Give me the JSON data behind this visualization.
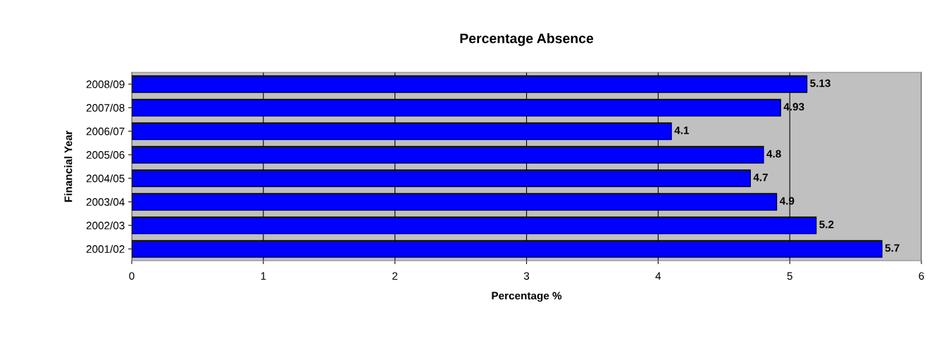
{
  "chart_data": {
    "type": "bar",
    "orientation": "horizontal",
    "title": "Percentage Absence",
    "xlabel": "Percentage %",
    "ylabel": "Financial Year",
    "categories": [
      "2008/09",
      "2007/08",
      "2006/07",
      "2005/06",
      "2004/05",
      "2003/04",
      "2002/03",
      "2001/02"
    ],
    "values": [
      5.13,
      4.93,
      4.1,
      4.8,
      4.7,
      4.9,
      5.2,
      5.7
    ],
    "color": "#0000ff",
    "xlim": [
      0,
      6
    ],
    "xticks": [
      0,
      1,
      2,
      3,
      4,
      5,
      6
    ],
    "grid": "x",
    "data_labels": true,
    "legend": false
  }
}
